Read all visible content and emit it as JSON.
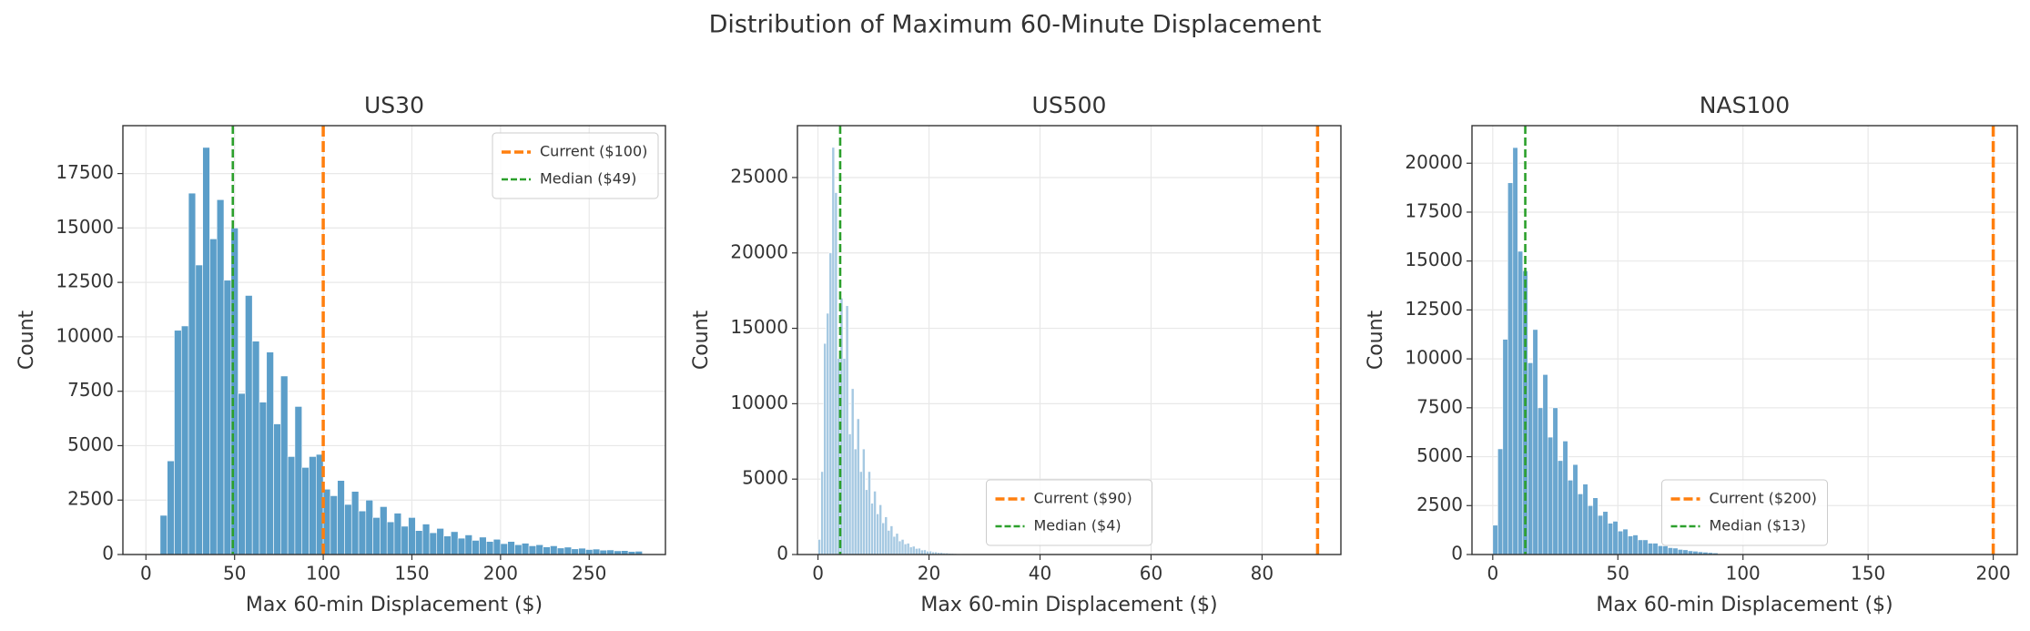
{
  "title": "Distribution of Maximum 60-Minute Displacement",
  "chart_data": [
    {
      "type": "histogram",
      "title": "US30",
      "xlabel": "Max 60-min Displacement ($)",
      "ylabel": "Count",
      "bins": [
        8,
        12,
        16,
        20,
        24,
        28,
        32,
        36,
        40,
        44,
        48,
        52,
        56,
        60,
        64,
        68,
        72,
        76,
        80,
        84,
        88,
        92,
        96,
        100,
        104,
        108,
        112,
        116,
        120,
        124,
        128,
        132,
        136,
        140,
        144,
        148,
        152,
        156,
        160,
        164,
        168,
        172,
        176,
        180,
        184,
        188,
        192,
        196,
        200,
        204,
        208,
        212,
        216,
        220,
        224,
        228,
        232,
        236,
        240,
        244,
        248,
        252,
        256,
        260,
        264,
        268,
        272,
        276,
        280
      ],
      "values": [
        1800,
        4300,
        10300,
        10500,
        16600,
        13300,
        18700,
        14500,
        16300,
        12600,
        15000,
        7400,
        11900,
        9800,
        7000,
        9300,
        6000,
        8200,
        4500,
        6800,
        4000,
        4500,
        4600,
        3000,
        2700,
        3400,
        2300,
        2900,
        2000,
        2500,
        1700,
        2200,
        1500,
        1900,
        1300,
        1700,
        1100,
        1400,
        1000,
        1200,
        850,
        1050,
        750,
        900,
        650,
        800,
        600,
        700,
        500,
        600,
        450,
        520,
        400,
        450,
        350,
        400,
        300,
        340,
        260,
        290,
        230,
        250,
        200,
        210,
        170,
        180,
        140,
        150
      ],
      "color": "#5b9ec9",
      "xlim": [
        -13,
        293
      ],
      "ylim": [
        0,
        19700
      ],
      "xticks": [
        0,
        50,
        100,
        150,
        200,
        250
      ],
      "yticks": [
        0,
        2500,
        5000,
        7500,
        10000,
        12500,
        15000,
        17500
      ],
      "grid": true,
      "legend": "upper right",
      "lines": [
        {
          "name": "Current ($100)",
          "x": 100,
          "color": "#ff7f0e"
        },
        {
          "name": "Median ($49)",
          "x": 49,
          "color": "#2ca02c"
        }
      ]
    },
    {
      "type": "histogram",
      "title": "US500",
      "xlabel": "Max 60-min Displacement ($)",
      "ylabel": "Count",
      "bins": [
        0,
        0.5,
        1,
        1.5,
        2,
        2.5,
        3,
        3.5,
        4,
        4.5,
        5,
        5.5,
        6,
        6.5,
        7,
        7.5,
        8,
        8.5,
        9,
        9.5,
        10,
        10.5,
        11,
        11.5,
        12,
        12.5,
        13,
        13.5,
        14,
        14.5,
        15,
        15.5,
        16,
        16.5,
        17,
        17.5,
        18,
        18.5,
        19,
        19.5,
        20,
        20.5,
        21,
        21.5,
        22,
        22.5,
        23,
        23.5,
        24,
        24.5,
        25,
        25.5,
        26
      ],
      "values": [
        1000,
        5500,
        14000,
        16000,
        20000,
        27000,
        24000,
        13000,
        17000,
        13000,
        16500,
        8000,
        11000,
        7000,
        9000,
        5500,
        7000,
        4300,
        5500,
        3400,
        4200,
        2700,
        3300,
        2100,
        2500,
        1600,
        1900,
        1200,
        1400,
        900,
        1000,
        700,
        750,
        500,
        550,
        400,
        420,
        300,
        310,
        220,
        230,
        170,
        170,
        130,
        130,
        100,
        100,
        80,
        70,
        60,
        50,
        40
      ],
      "color": "#a6c9e2",
      "xlim": [
        -3.7,
        94.2
      ],
      "ylim": [
        0,
        28440
      ],
      "xticks": [
        0,
        20,
        40,
        60,
        80
      ],
      "yticks": [
        0,
        5000,
        10000,
        15000,
        20000,
        25000
      ],
      "grid": true,
      "legend": "lower center",
      "lines": [
        {
          "name": "Current ($90)",
          "x": 90,
          "color": "#ff7f0e"
        },
        {
          "name": "Median ($4)",
          "x": 4,
          "color": "#2ca02c"
        }
      ]
    },
    {
      "type": "histogram",
      "title": "NAS100",
      "xlabel": "Max 60-min Displacement ($)",
      "ylabel": "Count",
      "bins": [
        0,
        2,
        4,
        6,
        8,
        10,
        12,
        14,
        16,
        18,
        20,
        22,
        24,
        26,
        28,
        30,
        32,
        34,
        36,
        38,
        40,
        42,
        44,
        46,
        48,
        50,
        52,
        54,
        56,
        58,
        60,
        62,
        64,
        66,
        68,
        70,
        72,
        74,
        76,
        78,
        80,
        82,
        84,
        86,
        88,
        90
      ],
      "values": [
        1500,
        5400,
        11000,
        19000,
        20800,
        15500,
        14500,
        9800,
        11500,
        7500,
        9200,
        6000,
        7500,
        4800,
        5800,
        3800,
        4600,
        3100,
        3600,
        2500,
        2900,
        2000,
        2200,
        1600,
        1700,
        1200,
        1300,
        950,
        1000,
        750,
        750,
        580,
        580,
        450,
        440,
        350,
        330,
        260,
        240,
        190,
        170,
        140,
        120,
        100,
        80
      ],
      "color": "#6aa6cf",
      "xlim": [
        -8.3,
        209.6
      ],
      "ylim": [
        0,
        21920
      ],
      "xticks": [
        0,
        50,
        100,
        150,
        200
      ],
      "yticks": [
        0,
        2500,
        5000,
        7500,
        10000,
        12500,
        15000,
        17500,
        20000
      ],
      "grid": true,
      "legend": "lower center",
      "lines": [
        {
          "name": "Current ($200)",
          "x": 200,
          "color": "#ff7f0e"
        },
        {
          "name": "Median ($13)",
          "x": 13,
          "color": "#2ca02c"
        }
      ]
    }
  ]
}
